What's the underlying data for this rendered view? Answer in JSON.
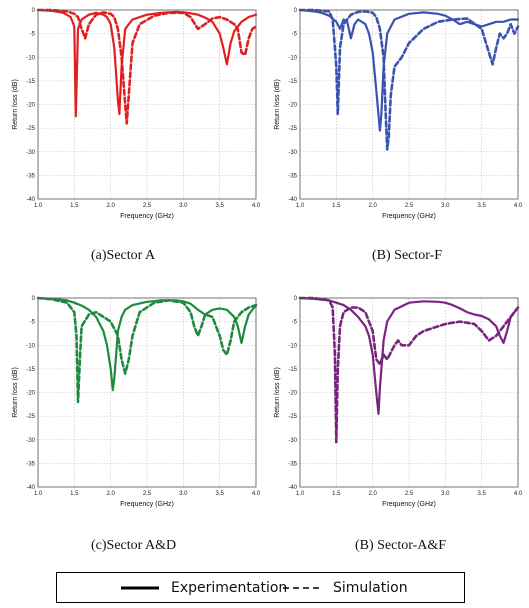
{
  "captions": [
    "(a)Sector A",
    "(B) Sector-F",
    "(c)Sector A&D",
    "(B) Sector-A&F"
  ],
  "legend": {
    "items": [
      {
        "label": "Experimentation",
        "style": "solid"
      },
      {
        "label": "Simulation",
        "style": "dashed"
      }
    ]
  },
  "chart_data": [
    {
      "type": "line",
      "title": "",
      "caption": "(a)Sector A",
      "color": "#e02020",
      "xlabel": "Frequency (GHz)",
      "ylabel": "Return loss (dB)",
      "xlim": [
        1.0,
        4.0
      ],
      "ylim": [
        -40,
        0
      ],
      "xticks": [
        "1.0",
        "1.5",
        "2.0",
        "2.5",
        "3.0",
        "3.5",
        "4.0"
      ],
      "yticks": [
        "0",
        "-5",
        "-10",
        "-15",
        "-20",
        "-25",
        "-30",
        "-35",
        "-40"
      ],
      "grid": true,
      "series": [
        {
          "name": "Experimentation",
          "style": "solid",
          "x": [
            1.0,
            1.2,
            1.35,
            1.45,
            1.5,
            1.52,
            1.55,
            1.6,
            1.7,
            1.8,
            1.9,
            1.95,
            2.0,
            2.05,
            2.1,
            2.12,
            2.15,
            2.2,
            2.3,
            2.5,
            2.7,
            2.9,
            3.0,
            3.1,
            3.2,
            3.3,
            3.4,
            3.5,
            3.55,
            3.6,
            3.65,
            3.7,
            3.8,
            3.9,
            4.0
          ],
          "y": [
            0,
            -0.2,
            -0.6,
            -1.5,
            -3.5,
            -22.5,
            -4,
            -2,
            -1,
            -0.6,
            -1,
            -1.5,
            -3,
            -8,
            -19,
            -22,
            -12,
            -4,
            -2,
            -1,
            -0.6,
            -0.4,
            -0.5,
            -0.7,
            -1,
            -1.6,
            -2.5,
            -5,
            -8,
            -11.5,
            -7,
            -4.5,
            -2.5,
            -1.5,
            -1
          ]
        },
        {
          "name": "Simulation",
          "style": "dashed",
          "x": [
            1.0,
            1.2,
            1.4,
            1.5,
            1.55,
            1.6,
            1.65,
            1.7,
            1.8,
            1.9,
            2.0,
            2.05,
            2.1,
            2.15,
            2.2,
            2.22,
            2.25,
            2.3,
            2.4,
            2.6,
            2.8,
            3.0,
            3.1,
            3.2,
            3.3,
            3.4,
            3.5,
            3.6,
            3.7,
            3.75,
            3.8,
            3.85,
            3.9,
            3.95,
            4.0
          ],
          "y": [
            0,
            0,
            -0.3,
            -0.8,
            -1.5,
            -4,
            -6,
            -3,
            -1,
            -0.5,
            -0.8,
            -1.5,
            -4,
            -10,
            -20,
            -24,
            -18,
            -7,
            -3,
            -1.2,
            -0.6,
            -0.6,
            -1.5,
            -4,
            -3,
            -1.8,
            -1.5,
            -2,
            -3,
            -4,
            -9,
            -9.5,
            -6,
            -4,
            -3.5
          ]
        }
      ]
    },
    {
      "type": "line",
      "title": "",
      "caption": "(B) Sector-F",
      "color": "#3a52b0",
      "xlabel": "Frequency (GHz)",
      "ylabel": "Return loss (dB)",
      "xlim": [
        1.0,
        4.0
      ],
      "ylim": [
        -40,
        0
      ],
      "xticks": [
        "1.0",
        "1.5",
        "2.0",
        "2.5",
        "3.0",
        "3.5",
        "4.0"
      ],
      "yticks": [
        "0",
        "-5",
        "-10",
        "-15",
        "-20",
        "-25",
        "-30",
        "-35",
        "-40"
      ],
      "grid": true,
      "series": [
        {
          "name": "Experimentation",
          "style": "solid",
          "x": [
            1.0,
            1.2,
            1.3,
            1.4,
            1.5,
            1.55,
            1.6,
            1.65,
            1.7,
            1.75,
            1.8,
            1.9,
            1.95,
            2.0,
            2.05,
            2.1,
            2.12,
            2.15,
            2.2,
            2.3,
            2.5,
            2.7,
            2.9,
            3.0,
            3.1,
            3.2,
            3.3,
            3.4,
            3.5,
            3.6,
            3.7,
            3.8,
            3.9,
            4.0
          ],
          "y": [
            0,
            -0.3,
            -0.6,
            -1.2,
            -2.5,
            -4,
            -2,
            -2.5,
            -6,
            -3,
            -2,
            -3,
            -5,
            -9,
            -17,
            -25.5,
            -22,
            -12,
            -5,
            -2,
            -0.8,
            -0.5,
            -0.8,
            -1.2,
            -2,
            -3,
            -2.5,
            -3,
            -3.5,
            -3,
            -2.5,
            -2.5,
            -2,
            -2
          ]
        },
        {
          "name": "Simulation",
          "style": "dashed",
          "x": [
            1.0,
            1.2,
            1.4,
            1.45,
            1.5,
            1.52,
            1.55,
            1.6,
            1.7,
            1.8,
            1.9,
            2.0,
            2.05,
            2.1,
            2.15,
            2.18,
            2.2,
            2.22,
            2.25,
            2.3,
            2.35,
            2.4,
            2.5,
            2.7,
            2.9,
            3.1,
            3.3,
            3.5,
            3.6,
            3.65,
            3.7,
            3.75,
            3.8,
            3.85,
            3.9,
            3.95,
            4.0
          ],
          "y": [
            0,
            0,
            -0.3,
            -2,
            -12,
            -22,
            -8,
            -3,
            -1,
            -0.4,
            -0.3,
            -0.6,
            -1.5,
            -4,
            -10,
            -22,
            -29.5,
            -27,
            -18,
            -12,
            -11,
            -10,
            -7,
            -4,
            -2.5,
            -2,
            -1.8,
            -4,
            -9,
            -11.5,
            -8,
            -5,
            -6,
            -5,
            -3,
            -5,
            -3.5
          ]
        }
      ]
    },
    {
      "type": "line",
      "title": "",
      "caption": "(c)Sector A&D",
      "color": "#1f8a3e",
      "xlabel": "Frequency (GHz)",
      "ylabel": "Return loss (dB)",
      "xlim": [
        1.0,
        4.0
      ],
      "ylim": [
        -40,
        0
      ],
      "xticks": [
        "1.0",
        "1.5",
        "2.0",
        "2.5",
        "3.0",
        "3.5",
        "4.0"
      ],
      "yticks": [
        "0",
        "-5",
        "-10",
        "-15",
        "-20",
        "-25",
        "-30",
        "-35",
        "-40"
      ],
      "grid": true,
      "series": [
        {
          "name": "Experimentation",
          "style": "solid",
          "x": [
            1.0,
            1.2,
            1.4,
            1.5,
            1.6,
            1.7,
            1.8,
            1.9,
            1.95,
            2.0,
            2.03,
            2.05,
            2.08,
            2.1,
            2.15,
            2.2,
            2.3,
            2.5,
            2.7,
            2.9,
            3.0,
            3.1,
            3.2,
            3.3,
            3.4,
            3.5,
            3.6,
            3.7,
            3.75,
            3.8,
            3.85,
            3.9,
            4.0
          ],
          "y": [
            0,
            -0.2,
            -0.5,
            -1,
            -1.6,
            -2.5,
            -4,
            -7,
            -10,
            -15,
            -19.5,
            -17,
            -11,
            -7,
            -4,
            -2.5,
            -1.5,
            -0.8,
            -0.5,
            -0.5,
            -0.7,
            -1.2,
            -2.5,
            -3.5,
            -2.5,
            -2.2,
            -2.5,
            -4,
            -6,
            -9.5,
            -6,
            -3.5,
            -1.5
          ]
        },
        {
          "name": "Simulation",
          "style": "dashed",
          "x": [
            1.0,
            1.2,
            1.4,
            1.5,
            1.53,
            1.55,
            1.58,
            1.6,
            1.7,
            1.8,
            1.9,
            2.0,
            2.1,
            2.15,
            2.2,
            2.25,
            2.3,
            2.4,
            2.6,
            2.8,
            3.0,
            3.1,
            3.15,
            3.2,
            3.25,
            3.3,
            3.4,
            3.5,
            3.55,
            3.6,
            3.65,
            3.7,
            3.8,
            3.9,
            4.0
          ],
          "y": [
            0,
            -0.3,
            -1,
            -3,
            -8,
            -22,
            -12,
            -6,
            -3.5,
            -3,
            -4,
            -5,
            -8,
            -13,
            -16,
            -13,
            -8,
            -3,
            -1,
            -0.5,
            -1,
            -3,
            -6,
            -8,
            -6,
            -3.5,
            -4,
            -8,
            -11,
            -12,
            -9,
            -5,
            -3,
            -2,
            -1.5
          ]
        }
      ]
    },
    {
      "type": "line",
      "title": "",
      "caption": "(B) Sector-A&F",
      "color": "#7a2380",
      "xlabel": "Frequency (GHz)",
      "ylabel": "Return loss (dB)",
      "xlim": [
        1.0,
        4.0
      ],
      "ylim": [
        -40,
        0
      ],
      "xticks": [
        "1.0",
        "1.5",
        "2.0",
        "2.5",
        "3.0",
        "3.5",
        "4.0"
      ],
      "yticks": [
        "0",
        "-5",
        "-10",
        "-15",
        "-20",
        "-25",
        "-30",
        "-35",
        "-40"
      ],
      "grid": true,
      "series": [
        {
          "name": "Experimentation",
          "style": "solid",
          "x": [
            1.0,
            1.2,
            1.4,
            1.5,
            1.6,
            1.7,
            1.8,
            1.9,
            1.95,
            2.0,
            2.05,
            2.08,
            2.1,
            2.15,
            2.2,
            2.3,
            2.5,
            2.7,
            2.9,
            3.0,
            3.1,
            3.2,
            3.3,
            3.4,
            3.5,
            3.6,
            3.7,
            3.75,
            3.8,
            3.85,
            3.9,
            4.0
          ],
          "y": [
            0,
            -0.2,
            -0.5,
            -1,
            -1.5,
            -2.5,
            -4,
            -6,
            -8,
            -12,
            -20,
            -24.5,
            -19,
            -9,
            -5,
            -2.5,
            -1,
            -0.7,
            -0.8,
            -1,
            -1.5,
            -2.2,
            -3,
            -3.5,
            -3.8,
            -4.5,
            -6,
            -8,
            -9.5,
            -7,
            -4,
            -2
          ]
        },
        {
          "name": "Simulation",
          "style": "dashed",
          "x": [
            1.0,
            1.2,
            1.4,
            1.45,
            1.48,
            1.5,
            1.52,
            1.55,
            1.6,
            1.7,
            1.8,
            1.9,
            2.0,
            2.05,
            2.1,
            2.15,
            2.2,
            2.3,
            2.35,
            2.4,
            2.5,
            2.6,
            2.7,
            2.8,
            2.9,
            3.0,
            3.2,
            3.4,
            3.5,
            3.6,
            3.7,
            3.8,
            3.9,
            4.0
          ],
          "y": [
            0,
            0,
            -0.5,
            -2,
            -12,
            -30.5,
            -15,
            -6,
            -3,
            -2,
            -2,
            -3,
            -7,
            -13,
            -14,
            -12,
            -13,
            -10,
            -9,
            -10,
            -10,
            -8,
            -7,
            -6.5,
            -6,
            -5.5,
            -5,
            -5.5,
            -7,
            -9,
            -8,
            -6,
            -4,
            -2
          ]
        }
      ]
    }
  ]
}
